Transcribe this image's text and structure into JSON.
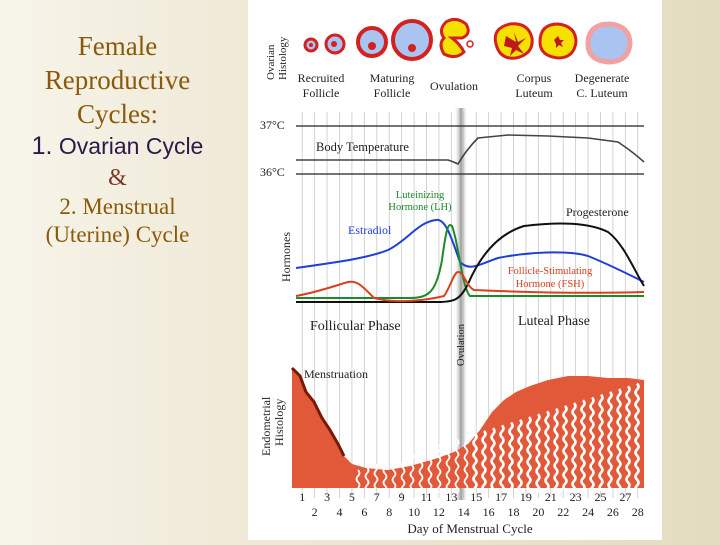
{
  "slide": {
    "title_lines": [
      "Female",
      "Reproductive",
      "Cycles:"
    ],
    "item1_number": "1.",
    "item1_text": "Ovarian Cycle",
    "ampersand": "&",
    "item2_lines": [
      "2. Menstrual",
      "(Uterine) Cycle"
    ]
  },
  "diagram": {
    "ovarian_histology_label": [
      "Ovarian",
      "Histology"
    ],
    "stage_labels": {
      "recruited": [
        "Recruited",
        "Follicle"
      ],
      "maturing": [
        "Maturing",
        "Follicle"
      ],
      "ovulation": "Ovulation",
      "corpus": [
        "Corpus",
        "Luteum"
      ],
      "degenerate": [
        "Degenerate",
        "C. Luteum"
      ]
    },
    "temp_labels": {
      "high": "37°C",
      "low": "36°C"
    },
    "body_temperature_label": "Body Temperature",
    "hormones_label": "Hormones",
    "hormone_labels": {
      "lh": [
        "Luteinizing",
        "Hormone (LH)"
      ],
      "estradiol": "Estradiol",
      "progesterone": "Progesterone",
      "fsh": [
        "Follicle-Stimulating",
        "Hormone (FSH)"
      ]
    },
    "phase_labels": {
      "follicular": "Follicular Phase",
      "luteal": "Luteal Phase",
      "ovulation_vertical": "Ovulation"
    },
    "menstruation_label": "Menstruation",
    "endometrial_label": [
      "Endometrial",
      "Histology"
    ],
    "x_axis": {
      "odd_days": [
        "1",
        "3",
        "5",
        "7",
        "9",
        "11",
        "13",
        "15",
        "17",
        "19",
        "21",
        "23",
        "25",
        "27"
      ],
      "even_days": [
        "2",
        "4",
        "6",
        "8",
        "10",
        "12",
        "14",
        "16",
        "18",
        "20",
        "22",
        "24",
        "26",
        "28"
      ],
      "title": "Day of Menstrual Cycle"
    },
    "colors": {
      "estradiol": "#1f3fd6",
      "lh": "#1a8a2a",
      "progesterone": "#111111",
      "fsh": "#d8401e",
      "endometrium": "#e2593a",
      "follicle_blue": "#a9c4f0",
      "follicle_red": "#d42020",
      "corpus_yellow": "#f5e000"
    }
  }
}
